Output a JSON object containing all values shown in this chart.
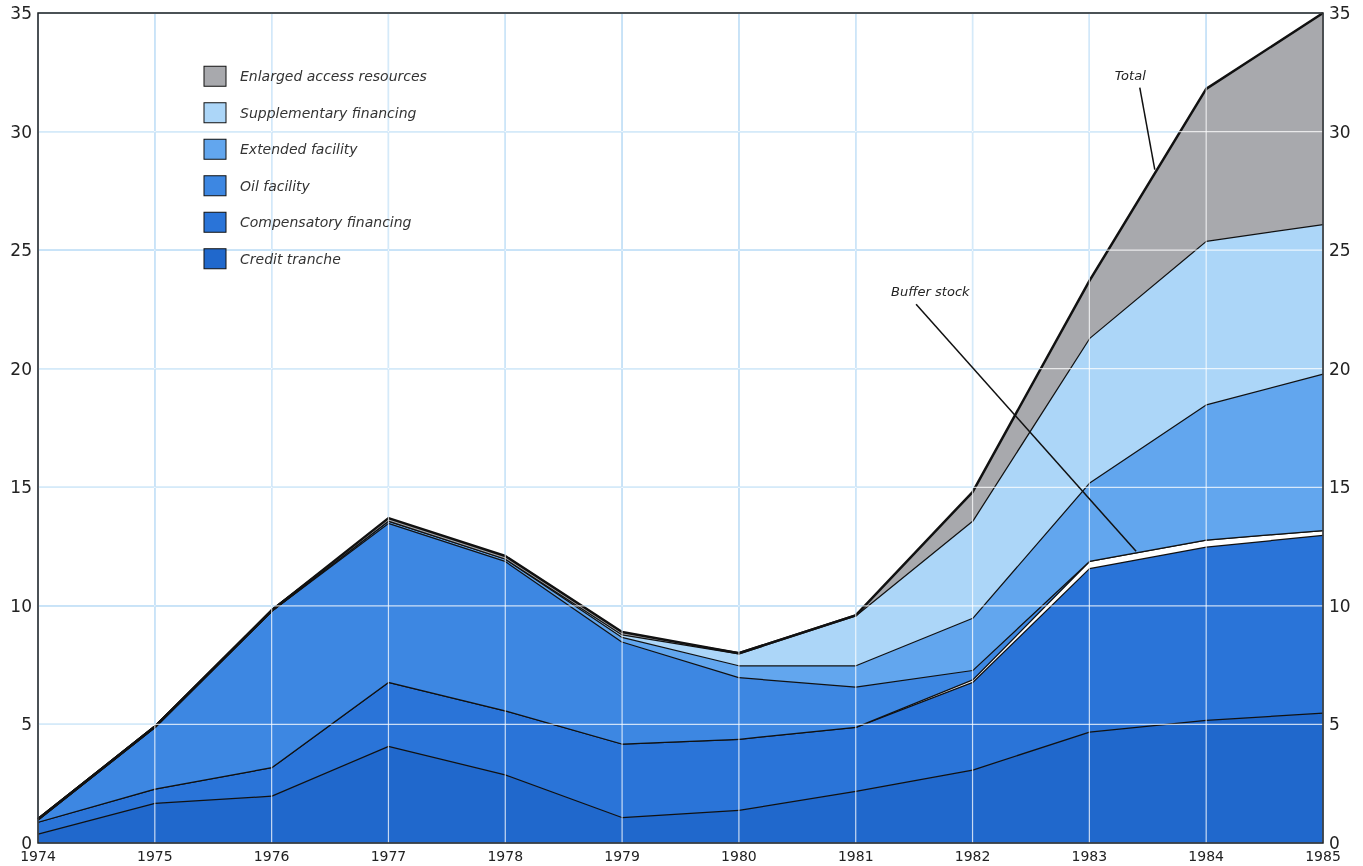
{
  "chart_data": {
    "type": "area",
    "stacked": true,
    "x": [
      1974,
      1975,
      1976,
      1977,
      1978,
      1979,
      1980,
      1981,
      1982,
      1983,
      1984,
      1985
    ],
    "series": [
      {
        "name": "Credit tranche",
        "color": "#2068cc",
        "values": [
          0.4,
          1.7,
          2.0,
          4.1,
          2.9,
          1.1,
          1.4,
          2.2,
          3.1,
          4.7,
          5.2,
          5.5
        ]
      },
      {
        "name": "Compensatory financing",
        "color": "#2a74d8",
        "values": [
          0.5,
          0.6,
          1.2,
          2.7,
          2.7,
          3.1,
          3.0,
          2.7,
          3.7,
          6.9,
          7.3,
          7.5
        ]
      },
      {
        "color": "#ffffff",
        "values": [
          0,
          0,
          0,
          0,
          0,
          0,
          0,
          0,
          0.1,
          0.3,
          0.3,
          0.2
        ]
      },
      {
        "name": "Oil facility",
        "color": "#3d87e2",
        "values": [
          0.1,
          2.6,
          6.6,
          6.7,
          6.3,
          4.3,
          2.6,
          1.7,
          0.4,
          0,
          0,
          0
        ]
      },
      {
        "name": "Extended facility",
        "color": "#62a6ee",
        "values": [
          0,
          0,
          0,
          0.1,
          0.1,
          0.2,
          0.5,
          0.9,
          2.2,
          3.3,
          5.7,
          6.6
        ]
      },
      {
        "name": "Supplementary financing",
        "color": "#acd6f8",
        "values": [
          0,
          0,
          0,
          0,
          0,
          0.1,
          0.5,
          2.1,
          4.1,
          6.1,
          6.9,
          6.3
        ]
      },
      {
        "name": "Enlarged access resources",
        "color": "#a8a9ad",
        "values": [
          0,
          0,
          0,
          0.1,
          0.1,
          0.1,
          0,
          0,
          1.2,
          2.4,
          6.4,
          8.9
        ]
      }
    ],
    "xlim": [
      1974,
      1985
    ],
    "xticks": [
      1974,
      1975,
      1976,
      1977,
      1978,
      1979,
      1980,
      1981,
      1982,
      1983,
      1984,
      1985
    ],
    "ylim": [
      0,
      35
    ],
    "yticks": [
      0,
      5,
      10,
      15,
      20,
      25,
      30,
      35
    ],
    "y2lim": [
      0,
      35
    ],
    "y2ticks": [
      0,
      5,
      10,
      15,
      20,
      25,
      30,
      35
    ],
    "annotations": [
      {
        "text": "Total",
        "x": 1983.56,
        "y": 28.4
      },
      {
        "text": "Buffer stock",
        "x": 1983.4,
        "y": 12.3
      }
    ],
    "grid": true,
    "legend": "top left"
  }
}
